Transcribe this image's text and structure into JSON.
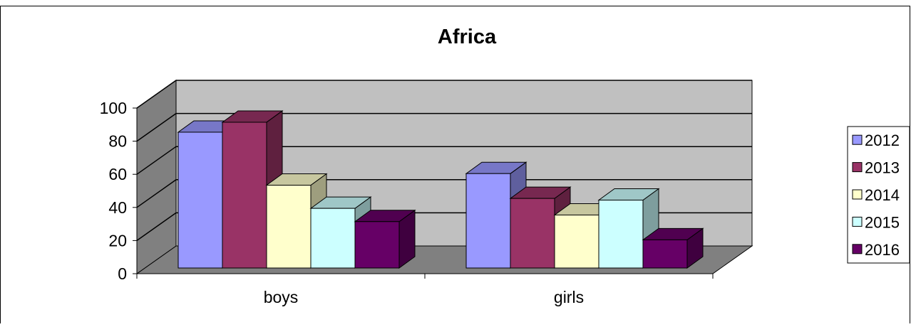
{
  "chart_data": {
    "type": "bar",
    "title": "Africa",
    "categories": [
      "boys",
      "girls"
    ],
    "series": [
      {
        "name": "2012",
        "values": [
          82,
          57
        ],
        "color": "#9999ff"
      },
      {
        "name": "2013",
        "values": [
          88,
          42
        ],
        "color": "#993366"
      },
      {
        "name": "2014",
        "values": [
          50,
          32
        ],
        "color": "#ffffcc"
      },
      {
        "name": "2015",
        "values": [
          36,
          41
        ],
        "color": "#ccffff"
      },
      {
        "name": "2016",
        "values": [
          28,
          17
        ],
        "color": "#660066"
      }
    ],
    "xlabel": "",
    "ylabel": "",
    "ylim": [
      0,
      100
    ],
    "yticks": [
      "0",
      "20",
      "40",
      "60",
      "80",
      "100"
    ],
    "grid": true,
    "legend_position": "right",
    "three_d": true,
    "wall_color": "#c0c0c0",
    "floor_color": "#808080"
  }
}
